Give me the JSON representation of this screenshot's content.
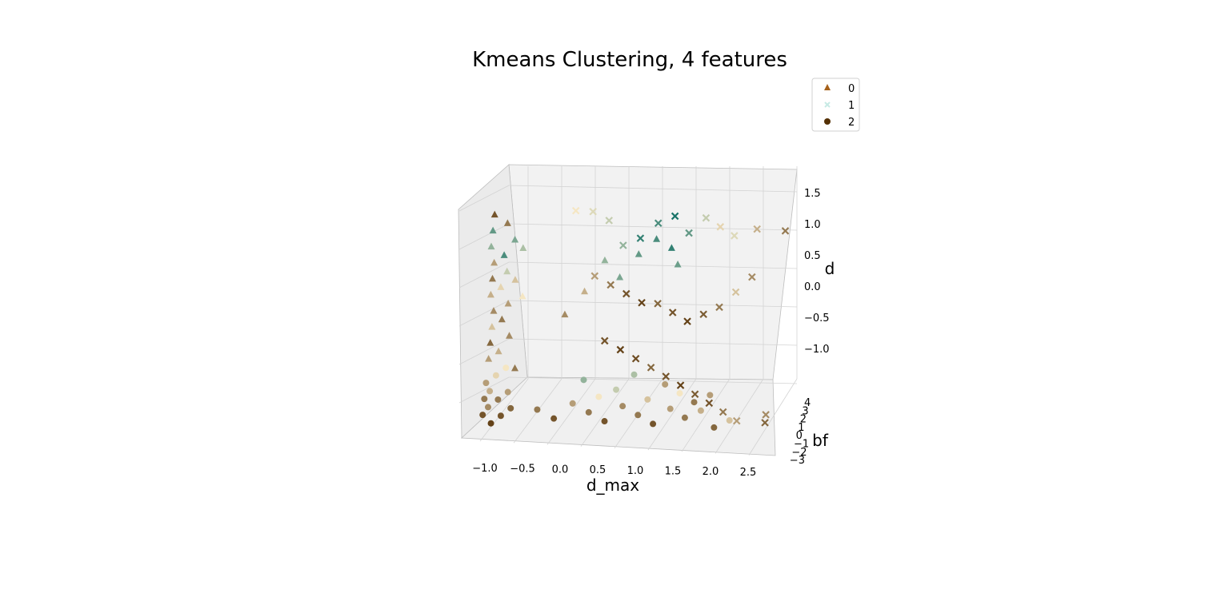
{
  "chart_data": {
    "type": "scatter",
    "title": "Kmeans Clustering, 4 features",
    "xlabel": "d_max",
    "ylabel": "bf",
    "zlabel": "d",
    "projection": "3d",
    "grid": true,
    "legend_position": "top-right",
    "x_ticks": [
      "−1.0",
      "−0.5",
      "0.0",
      "0.5",
      "1.0",
      "1.5",
      "2.0",
      "2.5"
    ],
    "y_ticks": [
      "4",
      "3",
      "2",
      "1",
      "0",
      "−1",
      "−2",
      "−3"
    ],
    "z_ticks": [
      "1.5",
      "1.0",
      "0.5",
      "0.0",
      "−0.5",
      "−1.0"
    ],
    "xlim": [
      -1.2,
      2.7
    ],
    "ylim": [
      -3,
      4.5
    ],
    "zlim": [
      -1.5,
      1.8
    ],
    "color_map": {
      "low": "#543005",
      "mid": "#f5e6c3",
      "high": "#01665e"
    },
    "series": [
      {
        "name": "0",
        "marker": "triangle",
        "legend_color": "#a6611a",
        "points": [
          [
            -1.1,
            3.5,
            1.3,
            0.1
          ],
          [
            -1.1,
            3.5,
            1.1,
            0.8
          ],
          [
            -1.1,
            3.5,
            0.9,
            0.7
          ],
          [
            -1.05,
            3.5,
            0.7,
            0.3
          ],
          [
            -1.05,
            3.5,
            0.5,
            0.2
          ],
          [
            -1.05,
            3.5,
            0.3,
            0.35
          ],
          [
            -1.0,
            3.5,
            0.1,
            0.25
          ],
          [
            -1.0,
            3.5,
            -0.1,
            0.4
          ],
          [
            -1.0,
            3.5,
            -0.3,
            0.15
          ],
          [
            -1.0,
            3.5,
            -0.5,
            0.3
          ],
          [
            -0.95,
            3.5,
            1.2,
            0.2
          ],
          [
            -0.95,
            3.5,
            0.8,
            0.85
          ],
          [
            -0.95,
            3.5,
            0.4,
            0.45
          ],
          [
            -0.9,
            3.5,
            0.0,
            0.2
          ],
          [
            -0.9,
            3.5,
            -0.4,
            0.35
          ],
          [
            -0.9,
            3.5,
            0.6,
            0.6
          ],
          [
            -0.85,
            3.5,
            1.0,
            0.75
          ],
          [
            -0.85,
            3.5,
            0.2,
            0.3
          ],
          [
            -0.8,
            3.5,
            -0.2,
            0.25
          ],
          [
            -0.8,
            3.5,
            0.5,
            0.4
          ],
          [
            -0.75,
            3.5,
            0.9,
            0.65
          ],
          [
            -0.7,
            3.5,
            0.3,
            0.5
          ],
          [
            -0.7,
            3.5,
            -0.6,
            0.2
          ],
          [
            -0.2,
            3.5,
            0.1,
            0.25
          ],
          [
            0.0,
            3.5,
            0.4,
            0.35
          ],
          [
            0.2,
            3.5,
            0.8,
            0.7
          ],
          [
            0.4,
            3.5,
            0.6,
            0.75
          ],
          [
            0.6,
            3.5,
            0.9,
            0.8
          ],
          [
            0.8,
            3.5,
            1.1,
            0.85
          ],
          [
            1.0,
            3.5,
            1.0,
            0.9
          ],
          [
            1.1,
            3.5,
            0.8,
            0.78
          ]
        ]
      },
      {
        "name": "1",
        "marker": "x",
        "legend_color": "#c7eae5",
        "points": [
          [
            -0.2,
            3.5,
            1.4,
            0.5
          ],
          [
            0.0,
            3.5,
            1.4,
            0.55
          ],
          [
            0.2,
            3.5,
            1.3,
            0.6
          ],
          [
            0.4,
            3.5,
            1.0,
            0.7
          ],
          [
            0.6,
            3.5,
            1.1,
            0.9
          ],
          [
            0.8,
            3.5,
            1.3,
            0.85
          ],
          [
            1.0,
            3.5,
            1.4,
            0.95
          ],
          [
            1.2,
            3.5,
            1.2,
            0.8
          ],
          [
            1.4,
            3.5,
            1.4,
            0.6
          ],
          [
            1.6,
            3.5,
            1.3,
            0.45
          ],
          [
            1.8,
            3.5,
            1.2,
            0.55
          ],
          [
            2.1,
            3.5,
            1.3,
            0.35
          ],
          [
            2.5,
            3.5,
            1.3,
            0.2
          ],
          [
            0.1,
            3.5,
            0.6,
            0.3
          ],
          [
            0.3,
            3.5,
            0.5,
            0.2
          ],
          [
            0.5,
            3.5,
            0.4,
            0.1
          ],
          [
            0.7,
            3.5,
            0.3,
            0.05
          ],
          [
            0.9,
            3.5,
            0.3,
            0.15
          ],
          [
            1.1,
            3.5,
            0.2,
            0.1
          ],
          [
            1.3,
            3.5,
            0.1,
            0.05
          ],
          [
            1.5,
            3.5,
            0.2,
            0.12
          ],
          [
            1.7,
            3.5,
            0.3,
            0.2
          ],
          [
            1.9,
            3.5,
            0.5,
            0.4
          ],
          [
            2.1,
            3.5,
            0.7,
            0.25
          ],
          [
            0.3,
            3.5,
            -0.2,
            0.1
          ],
          [
            0.5,
            3.5,
            -0.3,
            0.05
          ],
          [
            0.7,
            3.5,
            -0.4,
            0.08
          ],
          [
            0.9,
            3.5,
            -0.5,
            0.15
          ],
          [
            1.1,
            3.5,
            -0.6,
            0.1
          ],
          [
            1.3,
            3.5,
            -0.7,
            0.05
          ],
          [
            1.5,
            3.5,
            -0.8,
            0.12
          ],
          [
            1.7,
            3.5,
            -0.9,
            0.1
          ],
          [
            1.9,
            3.5,
            -1.0,
            0.2
          ],
          [
            2.1,
            3.5,
            -1.1,
            0.3
          ],
          [
            2.5,
            3.5,
            -1.0,
            0.25
          ],
          [
            2.5,
            3.5,
            -1.1,
            0.15
          ]
        ]
      },
      {
        "name": "2",
        "marker": "circle",
        "legend_color": "#543005",
        "points": [
          [
            -1.0,
            3.5,
            -0.8,
            0.3
          ],
          [
            -1.0,
            3.5,
            -1.0,
            0.2
          ],
          [
            -1.0,
            3.5,
            -1.2,
            0.1
          ],
          [
            -0.95,
            3.5,
            -0.9,
            0.35
          ],
          [
            -0.95,
            3.5,
            -1.1,
            0.25
          ],
          [
            -0.9,
            3.5,
            -1.3,
            0.05
          ],
          [
            -0.9,
            3.5,
            -0.7,
            0.45
          ],
          [
            -0.85,
            3.5,
            -1.0,
            0.2
          ],
          [
            -0.8,
            3.5,
            -0.6,
            0.5
          ],
          [
            -0.8,
            3.5,
            -1.2,
            0.1
          ],
          [
            -0.75,
            3.5,
            -0.9,
            0.3
          ],
          [
            -0.7,
            3.5,
            -1.1,
            0.15
          ],
          [
            -0.4,
            3.5,
            -1.1,
            0.2
          ],
          [
            -0.2,
            3.5,
            -1.2,
            0.1
          ],
          [
            0.0,
            3.5,
            -1.0,
            0.3
          ],
          [
            0.2,
            3.5,
            -1.1,
            0.2
          ],
          [
            0.4,
            3.5,
            -1.2,
            0.1
          ],
          [
            0.5,
            3.5,
            -0.8,
            0.6
          ],
          [
            0.6,
            3.5,
            -1.0,
            0.25
          ],
          [
            0.8,
            3.5,
            -1.1,
            0.2
          ],
          [
            1.0,
            3.5,
            -1.2,
            0.1
          ],
          [
            1.2,
            3.5,
            -1.0,
            0.3
          ],
          [
            1.4,
            3.5,
            -1.1,
            0.2
          ],
          [
            1.6,
            3.5,
            -1.0,
            0.35
          ],
          [
            1.8,
            3.5,
            -1.2,
            0.15
          ],
          [
            2.0,
            3.5,
            -1.1,
            0.4
          ],
          [
            0.1,
            3.5,
            -0.7,
            0.7
          ],
          [
            0.3,
            3.5,
            -0.9,
            0.5
          ],
          [
            0.7,
            3.5,
            -0.6,
            0.65
          ],
          [
            0.9,
            3.5,
            -0.9,
            0.4
          ],
          [
            1.1,
            3.5,
            -0.7,
            0.3
          ],
          [
            1.3,
            3.5,
            -0.8,
            0.5
          ],
          [
            1.5,
            3.5,
            -0.9,
            0.2
          ],
          [
            1.7,
            3.5,
            -0.8,
            0.3
          ]
        ]
      }
    ]
  }
}
